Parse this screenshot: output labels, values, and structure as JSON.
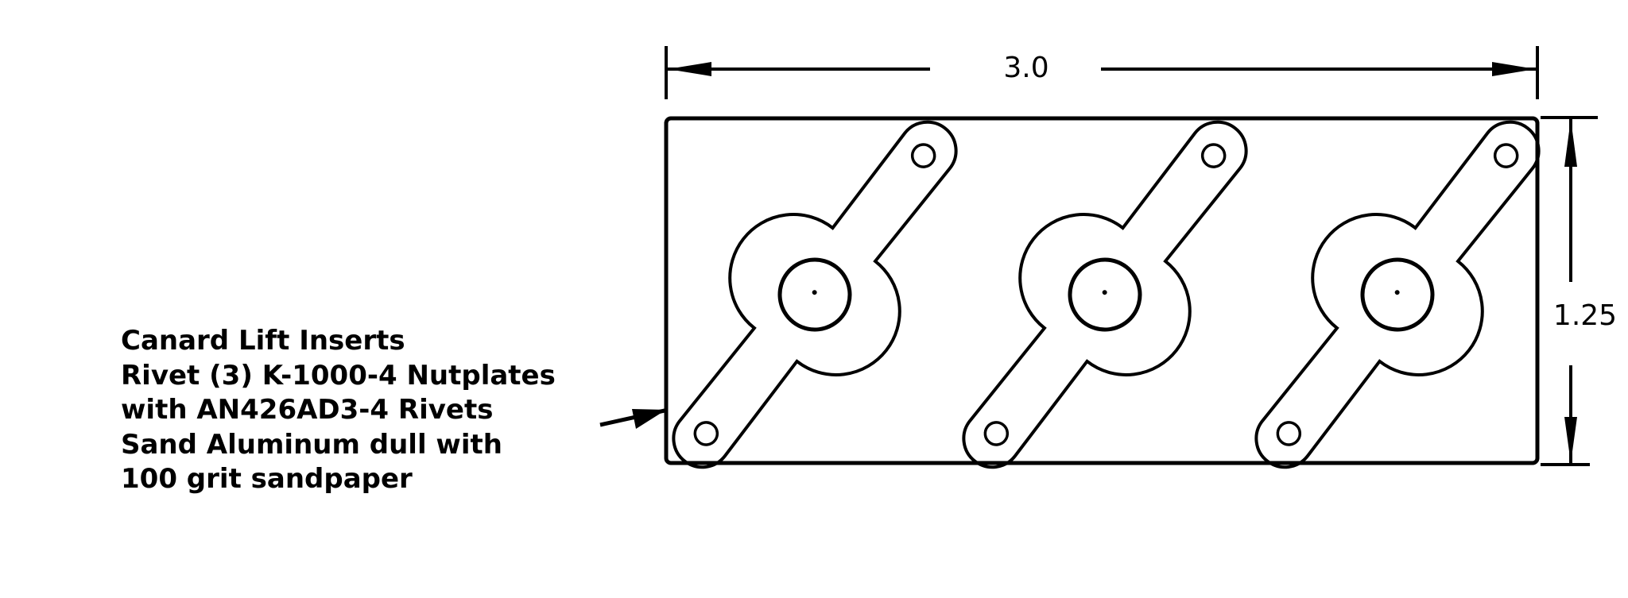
{
  "notes": {
    "lines": [
      "Canard Lift Inserts",
      "Rivet (3) K-1000-4 Nutplates",
      "with AN426AD3-4 Rivets",
      "Sand Aluminum dull with",
      "100 grit sandpaper"
    ]
  },
  "dimensions": {
    "width_label": "3.0",
    "height_label": "1.25"
  },
  "parts": {
    "nutplate_count": 3
  }
}
